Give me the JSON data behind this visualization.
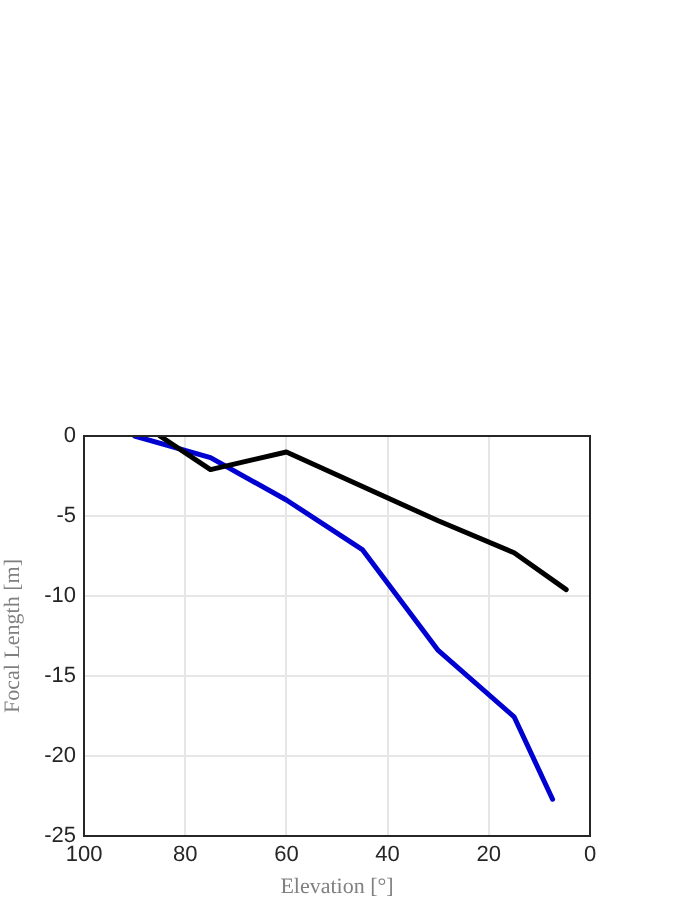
{
  "chart_data": {
    "type": "line",
    "xlabel": "Elevation [°]",
    "ylabel": "Focal Length [m]",
    "xlim": [
      100,
      0
    ],
    "xticks": [
      100,
      80,
      60,
      40,
      20,
      0
    ],
    "ylim": [
      -25,
      0
    ],
    "yticks": [
      -25,
      -20,
      -15,
      -10,
      -5,
      0
    ],
    "grid": true,
    "marker": "none",
    "line_style": "solid",
    "series": [
      {
        "color": "#000000",
        "x": [
          85,
          75,
          60,
          30,
          15,
          4.7
        ],
        "values": [
          0,
          -2.1,
          -1,
          -5.3,
          -7.3,
          -9.6
        ]
      },
      {
        "color": "#0000d0",
        "x": [
          90,
          75,
          60,
          45,
          30,
          15,
          7.4
        ],
        "values": [
          0,
          -1.35,
          -4,
          -7.1,
          -13.4,
          -17.55,
          -22.7
        ]
      }
    ]
  }
}
